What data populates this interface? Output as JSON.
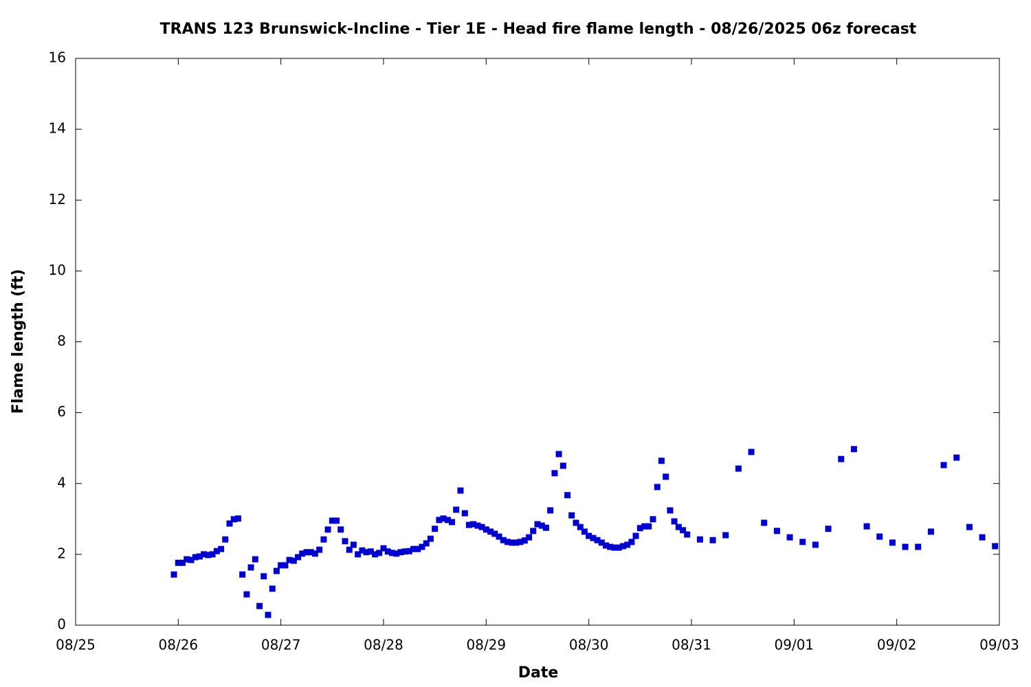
{
  "chart_data": {
    "type": "scatter",
    "title": "TRANS 123 Brunswick-Incline - Tier 1E - Head fire flame length - 08/26/2025 06z forecast",
    "x_label": "Date",
    "y_label": "Flame length (ft)",
    "xlim": [
      0,
      9
    ],
    "xticks": [
      {
        "value": 0,
        "label": "08/25"
      },
      {
        "value": 1,
        "label": "08/26"
      },
      {
        "value": 2,
        "label": "08/27"
      },
      {
        "value": 3,
        "label": "08/28"
      },
      {
        "value": 4,
        "label": "08/29"
      },
      {
        "value": 5,
        "label": "08/30"
      },
      {
        "value": 6,
        "label": "08/31"
      },
      {
        "value": 7,
        "label": "09/01"
      },
      {
        "value": 8,
        "label": "09/02"
      },
      {
        "value": 9,
        "label": "09/03"
      }
    ],
    "ylim": [
      0,
      16
    ],
    "yticks": [
      0,
      2,
      4,
      6,
      8,
      10,
      12,
      14,
      16
    ],
    "series": [
      {
        "color": "#0000cc",
        "x": [
          0.958,
          1,
          1.042,
          1.083,
          1.125,
          1.167,
          1.208,
          1.25,
          1.292,
          1.333,
          1.375,
          1.417,
          1.458,
          1.5,
          1.542,
          1.583,
          1.625,
          1.667,
          1.708,
          1.75,
          1.792,
          1.833,
          1.875,
          1.917,
          1.958,
          2,
          2.042,
          2.083,
          2.125,
          2.167,
          2.208,
          2.25,
          2.292,
          2.333,
          2.375,
          2.417,
          2.458,
          2.5,
          2.542,
          2.583,
          2.625,
          2.667,
          2.708,
          2.75,
          2.792,
          2.833,
          2.875,
          2.917,
          2.958,
          3,
          3.042,
          3.083,
          3.125,
          3.167,
          3.208,
          3.25,
          3.292,
          3.333,
          3.375,
          3.417,
          3.458,
          3.5,
          3.542,
          3.583,
          3.625,
          3.667,
          3.708,
          3.75,
          3.792,
          3.833,
          3.875,
          3.917,
          3.958,
          4,
          4.042,
          4.083,
          4.125,
          4.167,
          4.208,
          4.25,
          4.292,
          4.333,
          4.375,
          4.417,
          4.458,
          4.5,
          4.542,
          4.583,
          4.625,
          4.667,
          4.708,
          4.75,
          4.792,
          4.833,
          4.875,
          4.917,
          4.958,
          5,
          5.042,
          5.083,
          5.125,
          5.167,
          5.208,
          5.25,
          5.292,
          5.333,
          5.375,
          5.417,
          5.458,
          5.5,
          5.542,
          5.583,
          5.625,
          5.667,
          5.708,
          5.75,
          5.792,
          5.833,
          5.875,
          5.917,
          5.958,
          6.083,
          6.208,
          6.333,
          6.458,
          6.583,
          6.708,
          6.833,
          6.958,
          7.083,
          7.208,
          7.333,
          7.458,
          7.583,
          7.708,
          7.833,
          7.958,
          8.083,
          8.208,
          8.333,
          8.458,
          8.583,
          8.708,
          8.833,
          8.958
        ],
        "values": [
          1.43,
          1.76,
          1.76,
          1.86,
          1.84,
          1.92,
          1.94,
          2.0,
          1.98,
          2.0,
          2.09,
          2.15,
          2.42,
          2.87,
          2.99,
          3.01,
          1.43,
          0.87,
          1.63,
          1.86,
          0.54,
          1.38,
          0.29,
          1.03,
          1.53,
          1.69,
          1.69,
          1.84,
          1.82,
          1.92,
          2.02,
          2.06,
          2.06,
          2.02,
          2.13,
          2.42,
          2.7,
          2.95,
          2.95,
          2.7,
          2.37,
          2.13,
          2.27,
          2.0,
          2.11,
          2.06,
          2.08,
          2.0,
          2.04,
          2.17,
          2.08,
          2.04,
          2.02,
          2.06,
          2.08,
          2.09,
          2.15,
          2.15,
          2.21,
          2.31,
          2.44,
          2.72,
          2.97,
          3.01,
          2.97,
          2.91,
          3.26,
          3.8,
          3.16,
          2.83,
          2.85,
          2.81,
          2.77,
          2.7,
          2.64,
          2.58,
          2.5,
          2.4,
          2.35,
          2.33,
          2.33,
          2.35,
          2.39,
          2.48,
          2.66,
          2.85,
          2.81,
          2.75,
          3.24,
          4.29,
          4.83,
          4.5,
          3.67,
          3.1,
          2.89,
          2.77,
          2.64,
          2.52,
          2.46,
          2.4,
          2.33,
          2.25,
          2.21,
          2.19,
          2.19,
          2.23,
          2.27,
          2.35,
          2.52,
          2.74,
          2.79,
          2.79,
          2.99,
          3.9,
          4.64,
          4.19,
          3.24,
          2.93,
          2.77,
          2.68,
          2.56,
          2.42,
          2.4,
          2.54,
          4.42,
          4.89,
          2.89,
          2.66,
          2.48,
          2.35,
          2.27,
          2.72,
          4.69,
          4.97,
          2.79,
          2.5,
          2.33,
          2.21,
          2.21,
          2.64,
          4.52,
          4.73,
          2.77,
          2.48,
          2.23
        ]
      }
    ]
  }
}
